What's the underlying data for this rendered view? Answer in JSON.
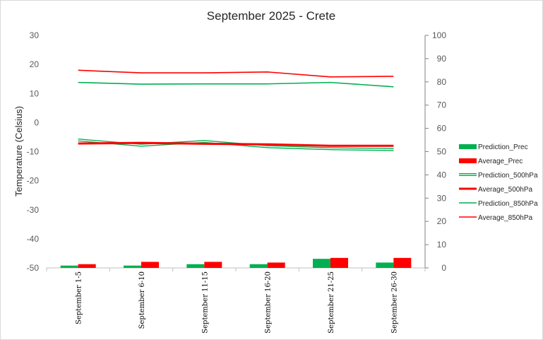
{
  "chart_data": {
    "type": "bar",
    "title": "September 2025 - Crete",
    "ylabel": "Temperature (Celsius)",
    "y2label": "",
    "ylim": [
      -50,
      30
    ],
    "y2lim": [
      0,
      100
    ],
    "yticks": [
      30,
      20,
      10,
      0,
      -10,
      -20,
      -30,
      -40,
      -50
    ],
    "y2ticks": [
      100,
      90,
      80,
      70,
      60,
      50,
      40,
      30,
      20,
      10,
      0
    ],
    "categories": [
      "September 1-5",
      "September 6-10",
      "September 11-15",
      "September 16-20",
      "September 21-25",
      "September 26-30"
    ],
    "legend_position": "right",
    "grid": false,
    "series": [
      {
        "name": "Prediction_Prec",
        "kind": "bar",
        "axis": "right",
        "color": "#00b050",
        "values": [
          1.0,
          1.0,
          1.6,
          1.6,
          3.9,
          2.3
        ]
      },
      {
        "name": "Average_Prec",
        "kind": "bar",
        "axis": "right",
        "color": "#ff0000",
        "values": [
          1.6,
          2.6,
          2.6,
          2.3,
          4.3,
          4.3
        ]
      },
      {
        "name": "Prediction_500hPa",
        "kind": "line",
        "style": "double",
        "axis": "left",
        "color": "#00b050",
        "values": [
          -6.0,
          -7.8,
          -6.5,
          -8.3,
          -9.0,
          -9.3
        ]
      },
      {
        "name": "Average_500hPa",
        "kind": "line",
        "axis": "left",
        "color": "#ff0000",
        "values": [
          -7.2,
          -7.0,
          -7.3,
          -7.5,
          -8.0,
          -8.0
        ]
      },
      {
        "name": "Prediction_850hPa",
        "kind": "line",
        "axis": "left",
        "color": "#00b050",
        "values": [
          13.8,
          13.2,
          13.3,
          13.3,
          13.8,
          12.3
        ]
      },
      {
        "name": "Average_850hPa",
        "kind": "line",
        "axis": "left",
        "color": "#ff0000",
        "values": [
          18.0,
          17.1,
          17.1,
          17.4,
          15.7,
          15.9
        ]
      }
    ]
  }
}
